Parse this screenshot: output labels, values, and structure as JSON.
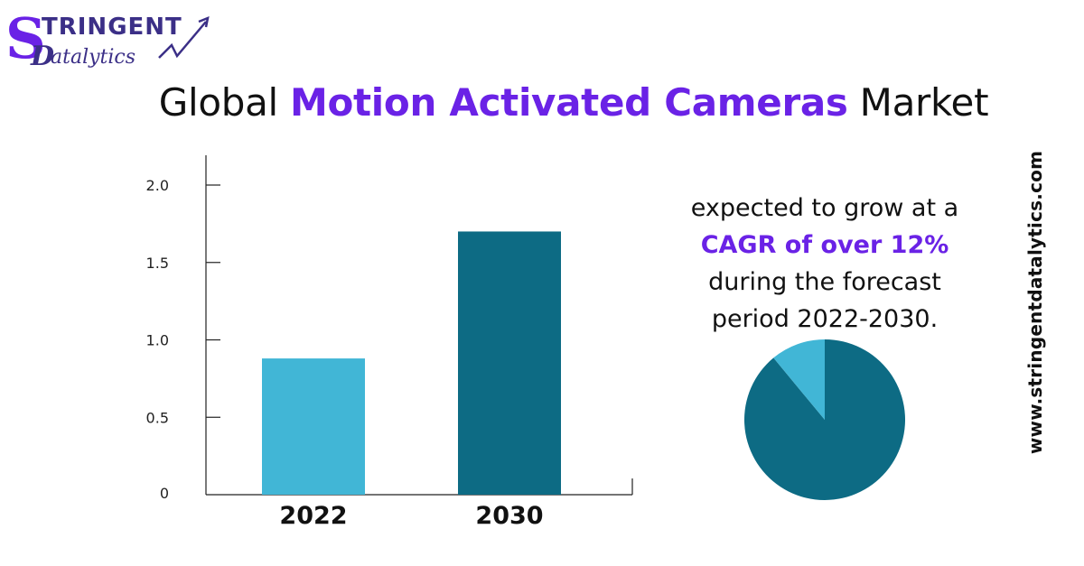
{
  "logo": {
    "line1": "TRINGENT",
    "line2": "atalytics",
    "brand_color": "#6a22e6",
    "text_color": "#3b2f87"
  },
  "title": {
    "prefix": "Global ",
    "highlight": "Motion Activated Cameras",
    "suffix": " Market"
  },
  "growth": {
    "line1": "expected to grow at a",
    "highlight": "CAGR of over 12%",
    "line3": "during the forecast",
    "line4": "period 2022-2030."
  },
  "website": "www.stringentdatalytics.com",
  "colors": {
    "accent": "#6a22e6",
    "bar_light": "#41b6d6",
    "bar_dark": "#0d6b84"
  },
  "chart_data": [
    {
      "type": "bar",
      "categories": [
        "2022",
        "2030"
      ],
      "values": [
        0.88,
        1.7
      ],
      "ylim": [
        0,
        2.0
      ],
      "yticks": [
        "0",
        "0.5",
        "1.0",
        "1.5",
        "2.0"
      ],
      "ytick_values": [
        0,
        0.5,
        1.0,
        1.5,
        2.0
      ],
      "bar_colors": [
        "#41b6d6",
        "#0d6b84"
      ],
      "title": "",
      "xlabel": "",
      "ylabel": "",
      "grid": false
    },
    {
      "type": "pie",
      "values": [
        89,
        11
      ],
      "colors": [
        "#0d6b84",
        "#41b6d6"
      ]
    }
  ]
}
